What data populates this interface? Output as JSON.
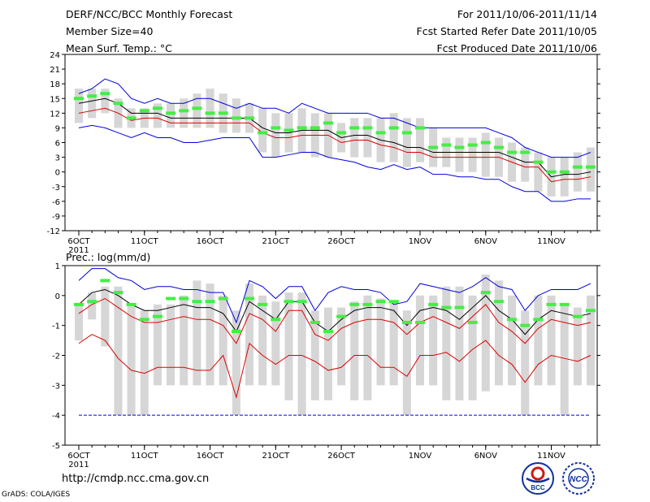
{
  "header": {
    "left": [
      "DERF/NCC/BCC Monthly Forecast",
      "Member Size=40",
      "Mean Surf. Temp.: °C"
    ],
    "right": [
      "For 2011/10/06-2011/11/14",
      "Fcst Started Refer Date 2011/10/05",
      "Fcst Produced Date 2011/10/06"
    ]
  },
  "footer": {
    "url": "http://cmdp.ncc.cma.gov.cn",
    "grads": "GrADS: COLA/IGES"
  },
  "logos": [
    "BCC",
    "NCC"
  ],
  "colors": {
    "upper": "#0000dd",
    "mean": "#000000",
    "lower": "#dd0000",
    "obs": "#44ee44",
    "box": "#d6d6d6"
  },
  "chart_data": [
    {
      "type": "line",
      "title": "Mean Surf. Temp.: °C",
      "day_range": [
        0,
        39
      ],
      "ylim": [
        -12,
        24
      ],
      "yticks": [
        "-12",
        "-9",
        "-6",
        "-3",
        "0",
        "3",
        "6",
        "9",
        "12",
        "15",
        "18",
        "21",
        "24"
      ],
      "xticks": [
        {
          "day": 0,
          "label": "6OCT",
          "sub": "2011"
        },
        {
          "day": 5,
          "label": "11OCT"
        },
        {
          "day": 10,
          "label": "16OCT"
        },
        {
          "day": 15,
          "label": "21OCT"
        },
        {
          "day": 20,
          "label": "26OCT"
        },
        {
          "day": 26,
          "label": "1NOV"
        },
        {
          "day": 31,
          "label": "6NOV"
        },
        {
          "day": 36,
          "label": "11NOV"
        }
      ],
      "series": [
        {
          "name": "max",
          "values": [
            16,
            17,
            19,
            18,
            15,
            14,
            15,
            14,
            14,
            15,
            15,
            14,
            13,
            14,
            13,
            13,
            12,
            14,
            13,
            12,
            12,
            12,
            12,
            11,
            11,
            10,
            9,
            9,
            9,
            9,
            9,
            9,
            8,
            7,
            5,
            4,
            3,
            3,
            3,
            4
          ]
        },
        {
          "name": "mean",
          "values": [
            14,
            14.5,
            15,
            14,
            12,
            12,
            12,
            11,
            11,
            11,
            11,
            11,
            11,
            11,
            9,
            8,
            8,
            8.5,
            8.5,
            8.5,
            7,
            7.5,
            7.5,
            6.5,
            6,
            5,
            5,
            4,
            4,
            4,
            4,
            4,
            4,
            3,
            2,
            2,
            -1,
            -0.5,
            -0.5,
            0
          ]
        },
        {
          "name": "min_mean",
          "values": [
            12,
            12.5,
            13,
            12,
            10.5,
            11,
            11,
            10,
            10,
            10,
            10,
            10,
            10,
            10,
            8,
            7,
            7,
            7.5,
            7.5,
            7.5,
            6,
            6.5,
            6.5,
            5.5,
            5,
            4,
            4,
            3,
            3,
            3,
            3,
            3,
            3,
            2,
            1,
            1,
            -2,
            -1.5,
            -1.5,
            -1
          ]
        },
        {
          "name": "min",
          "values": [
            9,
            9.5,
            9,
            8,
            7,
            8,
            7,
            7,
            6,
            6,
            6.5,
            7,
            7,
            7,
            3,
            3,
            3.5,
            4,
            4,
            3,
            2.5,
            2,
            1,
            0.5,
            1.5,
            0.5,
            1,
            -0.5,
            -0.5,
            -1,
            -1,
            -1.5,
            -1.5,
            -3,
            -4,
            -4,
            -6,
            -6,
            -5.5,
            -5.5
          ]
        },
        {
          "name": "obs",
          "values": [
            15,
            15.5,
            16,
            14,
            11,
            12.5,
            13,
            12,
            12.5,
            13,
            12,
            12,
            11,
            11,
            8,
            9,
            8.5,
            9,
            9,
            10,
            8,
            9,
            9,
            8,
            9,
            8,
            9,
            5,
            5.5,
            5,
            5.5,
            6,
            5,
            4,
            4,
            2,
            0,
            0,
            1,
            1
          ]
        }
      ],
      "box_ranges": [
        [
          10,
          17
        ],
        [
          11,
          17
        ],
        [
          12,
          17
        ],
        [
          9,
          15
        ],
        [
          9,
          13
        ],
        [
          9,
          13
        ],
        [
          9,
          14
        ],
        [
          9,
          14
        ],
        [
          9,
          15
        ],
        [
          9,
          16
        ],
        [
          9,
          17
        ],
        [
          8,
          16
        ],
        [
          8,
          15
        ],
        [
          8,
          14
        ],
        [
          4,
          13
        ],
        [
          3,
          12
        ],
        [
          4,
          12
        ],
        [
          4,
          13
        ],
        [
          3,
          12
        ],
        [
          3,
          12
        ],
        [
          4,
          10
        ],
        [
          3,
          11
        ],
        [
          3,
          11
        ],
        [
          2,
          11
        ],
        [
          2,
          12
        ],
        [
          1,
          11
        ],
        [
          2,
          11
        ],
        [
          1,
          9
        ],
        [
          1,
          7
        ],
        [
          0,
          7
        ],
        [
          0,
          7
        ],
        [
          -1,
          8
        ],
        [
          -1,
          7
        ],
        [
          -2,
          6
        ],
        [
          -2,
          5
        ],
        [
          -4,
          4
        ],
        [
          -5,
          3
        ],
        [
          -5,
          3
        ],
        [
          -4,
          4
        ],
        [
          -4,
          5
        ]
      ]
    },
    {
      "type": "line",
      "title": "Prec.: log(mm/d)",
      "day_range": [
        0,
        39
      ],
      "ylim": [
        -5,
        1
      ],
      "yticks": [
        "-5",
        "-4",
        "-3",
        "-2",
        "-1",
        "0",
        "1"
      ],
      "xticks": [
        {
          "day": 0,
          "label": "6OCT",
          "sub": "2011"
        },
        {
          "day": 5,
          "label": "11OCT"
        },
        {
          "day": 10,
          "label": "16OCT"
        },
        {
          "day": 15,
          "label": "21OCT"
        },
        {
          "day": 20,
          "label": "26OCT"
        },
        {
          "day": 26,
          "label": "1NOV"
        },
        {
          "day": 31,
          "label": "6NOV"
        },
        {
          "day": 36,
          "label": "11NOV"
        }
      ],
      "series": [
        {
          "name": "max",
          "values": [
            0.5,
            0.9,
            0.9,
            0.6,
            0.5,
            0.2,
            0.3,
            0.3,
            0.2,
            0.2,
            0.1,
            0.1,
            -0.9,
            0.5,
            0.3,
            -0.1,
            0.3,
            0.3,
            -0.5,
            0.1,
            0.3,
            0.2,
            0.2,
            0.1,
            -0.3,
            -0.2,
            0.4,
            0.3,
            0.2,
            0.1,
            0.3,
            0.6,
            0.3,
            0.2,
            -0.5,
            0,
            0.2,
            0.2,
            0.2,
            0.4
          ]
        },
        {
          "name": "mean",
          "values": [
            -0.3,
            0.1,
            0.2,
            0,
            -0.3,
            -0.5,
            -0.5,
            -0.4,
            -0.3,
            -0.4,
            -0.4,
            -0.6,
            -1.2,
            -0.2,
            -0.5,
            -0.8,
            -0.2,
            -0.2,
            -0.9,
            -1.2,
            -0.8,
            -0.5,
            -0.4,
            -0.4,
            -0.5,
            -1.0,
            -0.5,
            -0.4,
            -0.5,
            -0.8,
            -0.4,
            0,
            -0.5,
            -0.8,
            -1.3,
            -0.8,
            -0.5,
            -0.6,
            -0.7,
            -0.6
          ]
        },
        {
          "name": "mean_low",
          "values": [
            -0.6,
            -0.3,
            -0.1,
            -0.4,
            -0.7,
            -0.9,
            -0.9,
            -0.8,
            -0.7,
            -0.8,
            -0.8,
            -1.0,
            -1.6,
            -0.6,
            -0.8,
            -1.2,
            -0.5,
            -0.5,
            -1.3,
            -1.5,
            -1.1,
            -0.9,
            -0.8,
            -0.8,
            -0.9,
            -1.3,
            -0.9,
            -0.7,
            -0.9,
            -1.1,
            -0.7,
            -0.3,
            -0.9,
            -1.2,
            -1.6,
            -1.1,
            -0.8,
            -0.9,
            -1.0,
            -0.9
          ]
        },
        {
          "name": "min",
          "values": [
            -1.6,
            -1.3,
            -1.5,
            -2.1,
            -2.5,
            -2.6,
            -2.4,
            -2.4,
            -2.4,
            -2.5,
            -2.5,
            -2.0,
            -3.4,
            -1.6,
            -2.0,
            -2.3,
            -2.0,
            -2.0,
            -2.2,
            -2.5,
            -2.4,
            -2.0,
            -2.0,
            -2.4,
            -2.4,
            -2.7,
            -2.0,
            -2.0,
            -1.9,
            -2.2,
            -1.8,
            -1.5,
            -2.0,
            -2.3,
            -2.9,
            -2.3,
            -2.0,
            -2.1,
            -2.2,
            -2.0
          ]
        },
        {
          "name": "floor",
          "values": [
            -4,
            -4,
            -4,
            -4,
            -4,
            -4,
            -4,
            -4,
            -4,
            -4,
            -4,
            -4,
            -4,
            -4,
            -4,
            -4,
            -4,
            -4,
            -4,
            -4,
            -4,
            -4,
            -4,
            -4,
            -4,
            -4,
            -4,
            -4,
            -4,
            -4,
            -4,
            -4,
            -4,
            -4,
            -4,
            -4,
            -4,
            -4,
            -4,
            -4
          ]
        },
        {
          "name": "obs",
          "values": [
            -0.3,
            -0.2,
            0.5,
            0.1,
            -0.3,
            -0.8,
            -0.7,
            -0.1,
            -0.1,
            -0.2,
            -0.2,
            -0.1,
            -1.2,
            -0.1,
            -0.3,
            -0.8,
            -0.2,
            -0.2,
            -0.9,
            -1.2,
            -0.7,
            -0.3,
            -0.3,
            -0.2,
            -0.2,
            -0.9,
            -0.9,
            -0.3,
            -0.4,
            -0.4,
            -0.9,
            0.1,
            -0.2,
            -0.8,
            -1.0,
            -0.8,
            -0.3,
            -0.3,
            -0.7,
            -0.5
          ]
        }
      ],
      "box_ranges": [
        [
          -1.5,
          -0.3
        ],
        [
          -0.8,
          0.1
        ],
        [
          -1.7,
          0.3
        ],
        [
          -4,
          0.3
        ],
        [
          -4,
          -0.3
        ],
        [
          -4,
          -0.5
        ],
        [
          -3,
          -0.3
        ],
        [
          -3,
          -0.3
        ],
        [
          -3,
          0
        ],
        [
          -3,
          0.5
        ],
        [
          -3,
          0.4
        ],
        [
          -3,
          0
        ],
        [
          -4,
          -0.5
        ],
        [
          -3,
          0.4
        ],
        [
          -3,
          0
        ],
        [
          -3,
          -0.2
        ],
        [
          -3.5,
          0.1
        ],
        [
          -4,
          0.1
        ],
        [
          -3.5,
          -0.5
        ],
        [
          -3.5,
          -0.4
        ],
        [
          -3,
          -0.4
        ],
        [
          -3.5,
          -0.2
        ],
        [
          -3.5,
          0
        ],
        [
          -3,
          -0.1
        ],
        [
          -3,
          -0.2
        ],
        [
          -4,
          -0.5
        ],
        [
          -3,
          0
        ],
        [
          -3,
          0
        ],
        [
          -3.5,
          0.3
        ],
        [
          -3.5,
          0.3
        ],
        [
          -3.5,
          0
        ],
        [
          -3.2,
          0.7
        ],
        [
          -3,
          0.5
        ],
        [
          -3,
          0
        ],
        [
          -4,
          -0.5
        ],
        [
          -3,
          0
        ],
        [
          -3,
          0
        ],
        [
          -4,
          -0.3
        ],
        [
          -3,
          -0.4
        ],
        [
          -3,
          0
        ]
      ]
    }
  ]
}
